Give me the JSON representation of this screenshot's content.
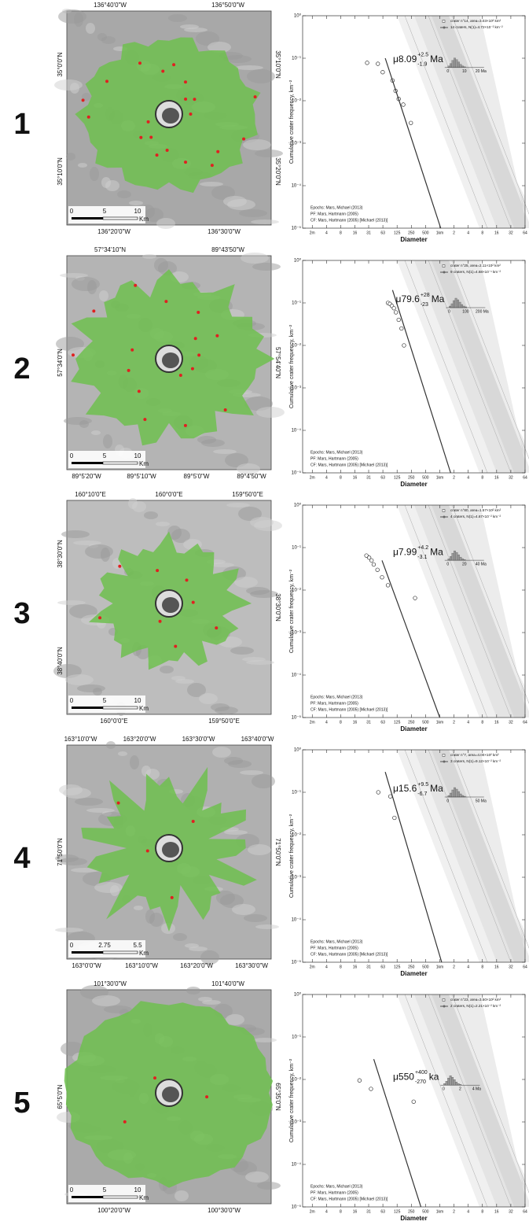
{
  "panels": [
    {
      "number": "1",
      "map": {
        "top_labels": [
          "136°40'0\"W",
          "136°50'0\"W"
        ],
        "bottom_labels": [
          "136°20'0\"W",
          "136°30'0\"W"
        ],
        "left_labels": [
          "35°0'0\"N",
          "35°10'0\"N"
        ],
        "right_labels": [
          "35°10'0\"N",
          "35°20'0\"N"
        ],
        "scale_labels": [
          "0",
          "5",
          "10"
        ],
        "scale_unit": "Km"
      }
    },
    {
      "number": "2",
      "map": {
        "top_labels": [
          "57°34'10\"N",
          "89°43'50\"W"
        ],
        "bottom_labels": [
          "89°5'20\"W",
          "89°5'10\"W",
          "89°5'0\"W",
          "89°4'50\"W"
        ],
        "left_labels": [
          "57°34'0\"N"
        ],
        "right_labels": [
          "57°54'40\"N"
        ],
        "scale_labels": [
          "0",
          "5",
          "10"
        ],
        "scale_unit": "Km"
      }
    },
    {
      "number": "3",
      "map": {
        "top_labels": [
          "160°10'0\"E",
          "160°0'0\"E",
          "159°50'0\"E"
        ],
        "bottom_labels": [
          "160°0'0\"E",
          "159°50'0\"E"
        ],
        "left_labels": [
          "38°30'0\"N",
          "38°40'0\"N"
        ],
        "right_labels": [
          "38°30'0\"N"
        ],
        "scale_labels": [
          "0",
          "5",
          "10"
        ],
        "scale_unit": "Km"
      }
    },
    {
      "number": "4",
      "map": {
        "top_labels": [
          "163°10'0\"W",
          "163°20'0\"W",
          "163°30'0\"W",
          "163°40'0\"W"
        ],
        "bottom_labels": [
          "163°0'0\"W",
          "163°10'0\"W",
          "163°20'0\"W",
          "163°30'0\"W"
        ],
        "left_labels": [
          "71°50'0\"N"
        ],
        "right_labels": [
          "71°50'0\"N"
        ],
        "scale_labels": [
          "0",
          "2.75",
          "5.5"
        ],
        "scale_unit": "Km"
      }
    },
    {
      "number": "5",
      "map": {
        "top_labels": [
          "101°30'0\"W",
          "101°40'0\"W"
        ],
        "bottom_labels": [
          "100°20'0\"W",
          "100°30'0\"W"
        ],
        "left_labels": [
          "65°5'0\"N"
        ],
        "right_labels": [
          "65°35'0\"N"
        ],
        "scale_labels": [
          "0",
          "5",
          "10"
        ],
        "scale_unit": "Km"
      }
    }
  ],
  "chart_data": [
    {
      "type": "scatter",
      "xlabel": "Diameter",
      "ylabel": "Cumulative crater frequency, km⁻²",
      "xlog": true,
      "ylog": true,
      "xlim": [
        1.25,
        64000
      ],
      "ylim": [
        1e-05,
        1
      ],
      "xticks": [
        {
          "value": 2,
          "label": "2m"
        },
        4,
        8,
        16,
        {
          "value": 31.25,
          "label": "31"
        },
        {
          "value": 62.5,
          "label": "63"
        },
        125,
        250,
        500,
        {
          "value": 1000,
          "label": "1km"
        },
        {
          "value": 2000,
          "label": "2"
        },
        {
          "value": 4000,
          "label": "4"
        },
        {
          "value": 8000,
          "label": "8"
        },
        {
          "value": 16000,
          "label": "16"
        },
        {
          "value": 32000,
          "label": "32"
        },
        {
          "value": 64000,
          "label": "64"
        }
      ],
      "yticks": [
        {
          "value": 1e-05,
          "label": "10⁻⁵"
        },
        {
          "value": 0.0001,
          "label": "10⁻⁴"
        },
        {
          "value": 0.001,
          "label": "10⁻³"
        },
        {
          "value": 0.01,
          "label": "10⁻²"
        },
        {
          "value": 0.1,
          "label": "10⁻¹"
        },
        {
          "value": 1,
          "label": "10⁰"
        }
      ],
      "series": [
        {
          "name": "crater n°14, area=3.03×10² km²",
          "color": "#333333",
          "style": "marker",
          "x": [
            29,
            49,
            62,
            100,
            116,
            135,
            169,
            245
          ],
          "values": [
            0.078,
            0.074,
            0.047,
            0.03,
            0.017,
            0.011,
            0.0081,
            0.003
          ]
        },
        {
          "name": "14 craters, N(1)=4.72×10⁻² km⁻²",
          "color": "#333333",
          "style": "line",
          "x": [
            70,
            1050
          ],
          "values": [
            0.1,
            1e-05
          ]
        }
      ],
      "age": {
        "mu": "μ8.09",
        "plus": "+2.5",
        "minus": "-1.9",
        "unit": "Ma"
      },
      "inset_labels": [
        "0",
        "10",
        "20 Ma"
      ],
      "notes": [
        "Epochs: Mars, Michael (2013)",
        "PF: Mars, Hartmann (2005)",
        "CF: Mars, Hartmann (2005) [Michael (2013)]"
      ]
    },
    {
      "type": "scatter",
      "xlabel": "Diameter",
      "ylabel": "Cumulative crater frequency, km⁻²",
      "xlog": true,
      "ylog": true,
      "xlim": [
        1.25,
        64000
      ],
      "ylim": [
        1e-05,
        1
      ],
      "xticks": [
        {
          "value": 2,
          "label": "2m"
        },
        4,
        8,
        16,
        {
          "value": 31.25,
          "label": "31"
        },
        {
          "value": 62.5,
          "label": "63"
        },
        125,
        250,
        500,
        {
          "value": 1000,
          "label": "1km"
        },
        {
          "value": 2000,
          "label": "2"
        },
        {
          "value": 4000,
          "label": "4"
        },
        {
          "value": 8000,
          "label": "8"
        },
        {
          "value": 16000,
          "label": "16"
        },
        {
          "value": 32000,
          "label": "32"
        },
        {
          "value": 64000,
          "label": "64"
        }
      ],
      "yticks": [
        {
          "value": 1e-05,
          "label": "10⁻⁵"
        },
        {
          "value": 0.0001,
          "label": "10⁻⁴"
        },
        {
          "value": 0.001,
          "label": "10⁻³"
        },
        {
          "value": 0.01,
          "label": "10⁻²"
        },
        {
          "value": 0.1,
          "label": "10⁻¹"
        },
        {
          "value": 1,
          "label": "10⁰"
        }
      ],
      "series": [
        {
          "name": "crater n°25, area=2.11×10² km²",
          "color": "#333333",
          "style": "marker",
          "x": [
            80,
            88,
            97,
            107,
            118,
            135,
            155,
            175
          ],
          "values": [
            0.1,
            0.095,
            0.085,
            0.075,
            0.06,
            0.04,
            0.025,
            0.01
          ]
        },
        {
          "name": "9 craters, N(1)=4.68×10⁻¹ km⁻²",
          "color": "#333333",
          "style": "line",
          "x": [
            100,
            1700
          ],
          "values": [
            0.2,
            1e-05
          ]
        }
      ],
      "age": {
        "mu": "μ79.6",
        "plus": "+28",
        "minus": "-23",
        "unit": "Ma"
      },
      "inset_labels": [
        "0",
        "100",
        "200 Ma"
      ],
      "notes": [
        "Epochs: Mars, Michael (2013)",
        "PF: Mars, Hartmann (2005)",
        "CF: Mars, Hartmann (2005) [Michael (2013)]"
      ]
    },
    {
      "type": "scatter",
      "xlabel": "Diameter",
      "ylabel": "Cumulative crater frequency, km⁻²",
      "xlog": true,
      "ylog": true,
      "xlim": [
        1.25,
        64000
      ],
      "ylim": [
        1e-05,
        1
      ],
      "xticks": [
        {
          "value": 2,
          "label": "2m"
        },
        4,
        8,
        16,
        {
          "value": 31.25,
          "label": "31"
        },
        {
          "value": 62.5,
          "label": "63"
        },
        125,
        250,
        500,
        {
          "value": 1000,
          "label": "1km"
        },
        {
          "value": 2000,
          "label": "2"
        },
        {
          "value": 4000,
          "label": "4"
        },
        {
          "value": 8000,
          "label": "8"
        },
        {
          "value": 16000,
          "label": "16"
        },
        {
          "value": 32000,
          "label": "32"
        },
        {
          "value": 64000,
          "label": "64"
        }
      ],
      "yticks": [
        {
          "value": 1e-05,
          "label": "10⁻⁵"
        },
        {
          "value": 0.0001,
          "label": "10⁻⁴"
        },
        {
          "value": 0.001,
          "label": "10⁻³"
        },
        {
          "value": 0.01,
          "label": "10⁻²"
        },
        {
          "value": 0.1,
          "label": "10⁻¹"
        },
        {
          "value": 1,
          "label": "10⁰"
        }
      ],
      "series": [
        {
          "name": "crater n°80, area=1.57×10² km²",
          "color": "#333333",
          "style": "marker",
          "x": [
            28,
            32,
            36,
            40,
            48,
            60,
            80,
            300
          ],
          "values": [
            0.065,
            0.058,
            0.05,
            0.04,
            0.03,
            0.02,
            0.013,
            0.0065
          ]
        },
        {
          "name": "4 craters, N(1)=4.67×10⁻² km⁻²",
          "color": "#333333",
          "style": "line",
          "x": [
            60,
            1000
          ],
          "values": [
            0.05,
            1e-05
          ]
        }
      ],
      "age": {
        "mu": "μ7.99",
        "plus": "+4.2",
        "minus": "-3.1",
        "unit": "Ma"
      },
      "inset_labels": [
        "0",
        "20",
        "40 Ma"
      ],
      "notes": [
        "Epochs: Mars, Michael (2013)",
        "PF: Mars, Hartmann (2005)",
        "CF: Mars, Hartmann (2005) [Michael (2013)]"
      ]
    },
    {
      "type": "scatter",
      "xlabel": "Diameter",
      "ylabel": "Cumulative crater frequency, km⁻²",
      "xlog": true,
      "ylog": true,
      "xlim": [
        1.25,
        64000
      ],
      "ylim": [
        1e-05,
        1
      ],
      "xticks": [
        {
          "value": 2,
          "label": "2m"
        },
        4,
        8,
        16,
        {
          "value": 31.25,
          "label": "31"
        },
        {
          "value": 62.5,
          "label": "63"
        },
        125,
        250,
        500,
        {
          "value": 1000,
          "label": "1km"
        },
        {
          "value": 2000,
          "label": "2"
        },
        {
          "value": 4000,
          "label": "4"
        },
        {
          "value": 8000,
          "label": "8"
        },
        {
          "value": 16000,
          "label": "16"
        },
        {
          "value": 32000,
          "label": "32"
        },
        {
          "value": 64000,
          "label": "64"
        }
      ],
      "yticks": [
        {
          "value": 1e-05,
          "label": "10⁻⁵"
        },
        {
          "value": 0.0001,
          "label": "10⁻⁴"
        },
        {
          "value": 0.001,
          "label": "10⁻³"
        },
        {
          "value": 0.01,
          "label": "10⁻²"
        },
        {
          "value": 0.1,
          "label": "10⁻¹"
        },
        {
          "value": 1,
          "label": "10⁰"
        }
      ],
      "series": [
        {
          "name": "crater n°7, area=4.00×10² km²",
          "color": "#333333",
          "style": "marker",
          "x": [
            50,
            90,
            110
          ],
          "values": [
            0.1,
            0.08,
            0.025
          ]
        },
        {
          "name": "3 craters, N(1)=9.12×10⁻² km⁻²",
          "color": "#333333",
          "style": "line",
          "x": [
            70,
            1100
          ],
          "values": [
            0.3,
            1e-05
          ]
        }
      ],
      "age": {
        "mu": "μ15.6",
        "plus": "+9.5",
        "minus": "-6.7",
        "unit": "Ma"
      },
      "inset_labels": [
        "0",
        "50 Ma"
      ],
      "notes": [
        "Epochs: Mars, Michael (2013)",
        "PF: Mars, Hartmann (2005)",
        "CF: Mars, Hartmann (2005) [Michael (2013)]"
      ]
    },
    {
      "type": "scatter",
      "xlabel": "Diameter",
      "ylabel": "Cumulative crater frequency, km⁻²",
      "xlog": true,
      "ylog": true,
      "xlim": [
        1.25,
        64000
      ],
      "ylim": [
        1e-05,
        1
      ],
      "xticks": [
        {
          "value": 2,
          "label": "2m"
        },
        4,
        8,
        16,
        {
          "value": 31.25,
          "label": "31"
        },
        {
          "value": 62.5,
          "label": "63"
        },
        125,
        250,
        500,
        {
          "value": 1000,
          "label": "1km"
        },
        {
          "value": 2000,
          "label": "2"
        },
        {
          "value": 4000,
          "label": "4"
        },
        {
          "value": 8000,
          "label": "8"
        },
        {
          "value": 16000,
          "label": "16"
        },
        {
          "value": 32000,
          "label": "32"
        },
        {
          "value": 64000,
          "label": "64"
        }
      ],
      "yticks": [
        {
          "value": 1e-05,
          "label": "10⁻⁵"
        },
        {
          "value": 0.0001,
          "label": "10⁻⁴"
        },
        {
          "value": 0.001,
          "label": "10⁻³"
        },
        {
          "value": 0.01,
          "label": "10⁻²"
        },
        {
          "value": 0.1,
          "label": "10⁻¹"
        },
        {
          "value": 1,
          "label": "10⁰"
        }
      ],
      "series": [
        {
          "name": "crater n°23, area=3.50×10² km²",
          "color": "#333333",
          "style": "marker",
          "x": [
            20,
            35,
            280
          ],
          "values": [
            0.0095,
            0.006,
            0.003
          ]
        },
        {
          "name": "2 craters, N(1)=2.21×10⁻² km⁻²",
          "color": "#333333",
          "style": "line",
          "x": [
            40,
            400
          ],
          "values": [
            0.03,
            1e-05
          ]
        }
      ],
      "age": {
        "mu": "μ550",
        "plus": "+400",
        "minus": "-270",
        "unit": "ka"
      },
      "inset_labels": [
        "0",
        "2",
        "4 Ma"
      ],
      "notes": [
        "Epochs: Mars, Michael (2013)",
        "PF: Mars, Hartmann (2005)",
        "CF: Mars, Hartmann (2005) [Michael (2013)]"
      ]
    }
  ]
}
